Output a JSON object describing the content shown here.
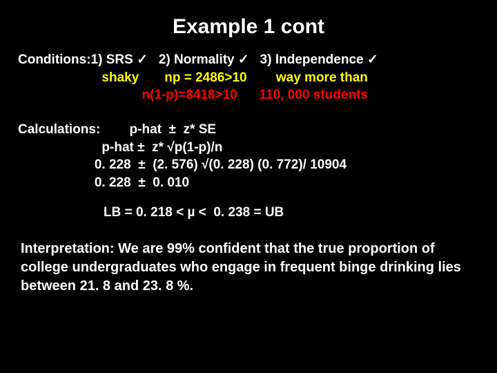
{
  "title": "Example 1 cont",
  "conditions": {
    "label": "Conditions:",
    "row1": {
      "c1": "1) SRS ",
      "check1": "✓",
      "c2": "   2) Normality ",
      "check2": "✓",
      "c3": "   3) Independence ",
      "check3": "✓"
    },
    "row2": {
      "c1": "shaky",
      "c2": "np = 2486>10",
      "c3": "way more than"
    },
    "row3": {
      "c2": "n(1-p)=8418>10",
      "c3": "110, 000 students"
    }
  },
  "calculations": {
    "label": "Calculations:",
    "r1": " p-hat  ±  z* SE",
    "r2": " p-hat ±  z* √p(1-p)/n",
    "r3": "0. 228  ±  (2. 576) √(0. 228) (0. 772)/ 10904",
    "r4": "0. 228  ±  0. 010"
  },
  "bounds": "LB = 0. 218 < µ <  0. 238 = UB",
  "interpretation": {
    "label": "Interpretation:",
    "text": "  We are 99% confident that the true proportion of college undergraduates who engage in frequent binge drinking lies between 21. 8 and 23. 8 %."
  },
  "colors": {
    "background": "#000000",
    "text": "#ffffff",
    "yellow": "#ffff00",
    "red": "#ff0000"
  }
}
